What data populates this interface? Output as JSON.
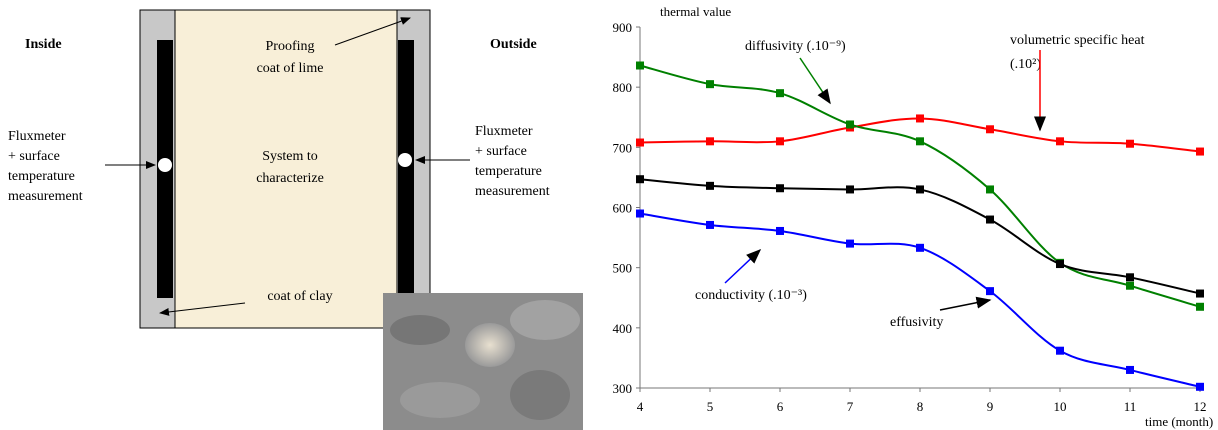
{
  "diagram": {
    "inside": "Inside",
    "outside": "Outside",
    "top_label": [
      "Proofing",
      "coat of lime"
    ],
    "center_label": [
      "System to",
      "characterize"
    ],
    "left_label": [
      "Fluxmeter",
      "+ surface",
      "temperature",
      "measurement"
    ],
    "right_label": [
      "Fluxmeter",
      "+ surface",
      "temperature",
      "measurement"
    ],
    "bottom_label": "coat of clay"
  },
  "chart_data": {
    "type": "line",
    "ylabel": "thermal value",
    "xlabel": "time (month)",
    "x": [
      4,
      5,
      6,
      7,
      8,
      9,
      10,
      11,
      12
    ],
    "xlim": [
      4,
      12
    ],
    "xticks": [
      4,
      5,
      6,
      7,
      8,
      9,
      10,
      11,
      12
    ],
    "ylim": [
      300,
      900
    ],
    "yticks": [
      300,
      400,
      500,
      600,
      700,
      800,
      900
    ],
    "grid": false,
    "series": [
      {
        "name": "volumetric specific heat",
        "unit": "(.10²)",
        "color": "#ff0000",
        "values": [
          708,
          710,
          710,
          733,
          748,
          730,
          710,
          706,
          693
        ]
      },
      {
        "name": "diffusivity (.10⁻⁹)",
        "color": "#008000",
        "values": [
          836,
          805,
          790,
          738,
          710,
          630,
          508,
          470,
          435
        ]
      },
      {
        "name": "effusivity",
        "color": "#000000",
        "values": [
          647,
          636,
          632,
          630,
          630,
          580,
          506,
          484,
          457
        ]
      },
      {
        "name": "conductivity (.10⁻³)",
        "color": "#0000ff",
        "values": [
          590,
          571,
          561,
          540,
          533,
          461,
          362,
          330,
          302
        ]
      }
    ]
  }
}
